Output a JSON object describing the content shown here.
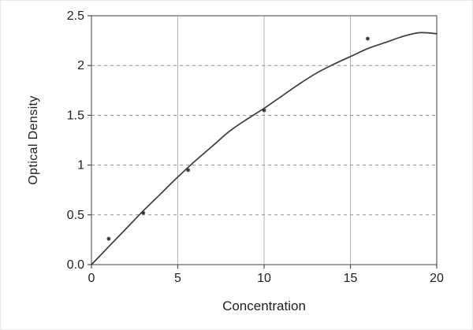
{
  "chart_data": {
    "type": "scatter-line",
    "title": "",
    "xlabel": "Concentration",
    "ylabel": "Optical Density",
    "xlim": [
      0,
      20
    ],
    "ylim": [
      0,
      2.5
    ],
    "x_ticks": [
      0,
      5,
      10,
      15,
      20
    ],
    "x_tick_labels": [
      "0",
      "5",
      "10",
      "15",
      "20"
    ],
    "y_ticks": [
      0,
      0.5,
      1,
      1.5,
      2,
      2.5
    ],
    "y_tick_labels": [
      "0.0",
      "0.5",
      "1",
      "1.5",
      "2",
      "2.5"
    ],
    "grid": {
      "vertical": [
        5,
        10,
        15
      ],
      "horizontal": [
        0.5,
        1,
        1.5,
        2
      ]
    },
    "points": [
      [
        1,
        0.26
      ],
      [
        3,
        0.52
      ],
      [
        5.6,
        0.95
      ],
      [
        10,
        1.55
      ],
      [
        16,
        2.27
      ]
    ],
    "curve": [
      [
        0,
        0
      ],
      [
        1,
        0.18
      ],
      [
        2,
        0.36
      ],
      [
        3,
        0.54
      ],
      [
        4,
        0.71
      ],
      [
        5,
        0.88
      ],
      [
        6,
        1.04
      ],
      [
        7,
        1.19
      ],
      [
        8,
        1.34
      ],
      [
        9,
        1.46
      ],
      [
        10,
        1.57
      ],
      [
        11,
        1.69
      ],
      [
        12,
        1.81
      ],
      [
        13,
        1.92
      ],
      [
        14,
        2.01
      ],
      [
        15,
        2.09
      ],
      [
        16,
        2.17
      ],
      [
        17,
        2.23
      ],
      [
        18,
        2.29
      ],
      [
        19,
        2.33
      ],
      [
        20,
        2.32
      ]
    ],
    "legend": "none",
    "grid_on": true,
    "colors": {
      "curve": "#3d3d3d",
      "marker": "#333333",
      "frame": "#6b6b6b",
      "grid_vertical": "#b5b5b5",
      "grid_horizontal": "#8f8f8f",
      "tick": "#4a4a4a",
      "text": "#1f1f1f",
      "background": "#ffffff"
    }
  }
}
